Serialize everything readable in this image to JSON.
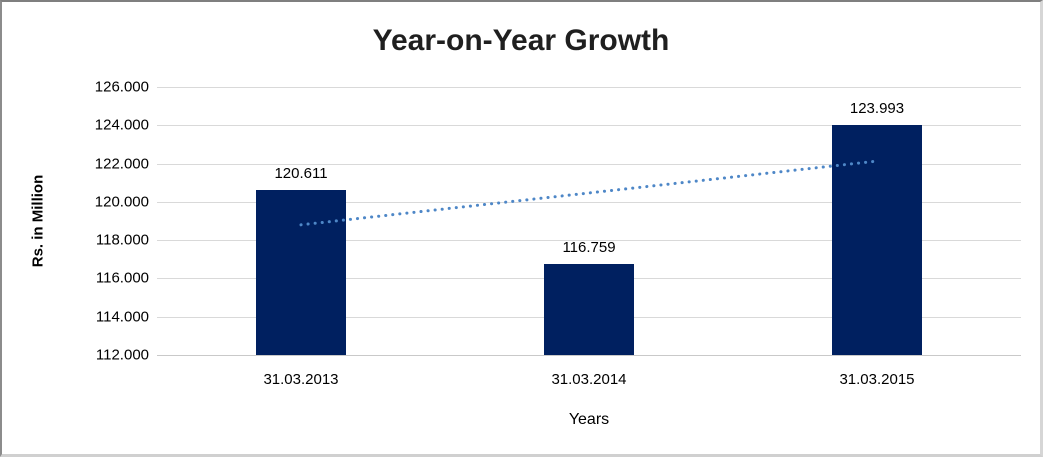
{
  "chart_data": {
    "type": "bar",
    "title": "Year-on-Year Growth",
    "xlabel": "Years",
    "ylabel": "Rs. in Million",
    "categories": [
      "31.03.2013",
      "31.03.2014",
      "31.03.2015"
    ],
    "values": [
      120.611,
      116.759,
      123.993
    ],
    "value_labels": [
      "120.611",
      "116.759",
      "123.993"
    ],
    "ylim": [
      112,
      126
    ],
    "ytick_labels": [
      "126.000",
      "124.000",
      "122.000",
      "120.000",
      "118.000",
      "116.000",
      "114.000",
      "112.000"
    ],
    "grid": "horizontal",
    "legend": "none",
    "trendline": {
      "style": "dotted",
      "values": [
        118.8,
        120.46,
        122.13
      ]
    }
  },
  "colors": {
    "bar_fill": "#002060",
    "trendline": "#4e87c7",
    "gridline": "#d9d9d9",
    "axis_line": "#c9c9c9",
    "title_text": "#1f1f1f",
    "tick_text": "#000000"
  }
}
